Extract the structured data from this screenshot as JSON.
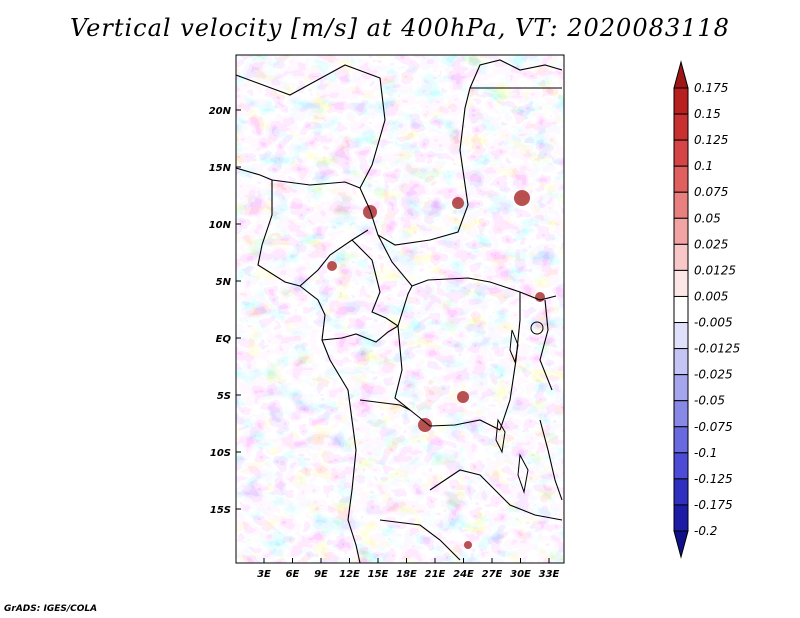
{
  "title": "Vertical velocity [m/s] at 400hPa, VT: 2020083118",
  "credit": "GrADS: IGES/COLA",
  "map": {
    "lat_ticks": [
      "20N",
      "15N",
      "10N",
      "5N",
      "EQ",
      "5S",
      "10S",
      "15S"
    ],
    "lon_ticks": [
      "3E",
      "6E",
      "9E",
      "12E",
      "15E",
      "18E",
      "21E",
      "24E",
      "27E",
      "30E",
      "33E"
    ]
  },
  "colorbar": {
    "labels": [
      "0.175",
      "0.15",
      "0.125",
      "0.1",
      "0.075",
      "0.05",
      "0.025",
      "0.0125",
      "0.005",
      "-0.005",
      "-0.0125",
      "-0.025",
      "-0.05",
      "-0.075",
      "-0.1",
      "-0.125",
      "-0.175",
      "-0.2"
    ],
    "colors": [
      "#9e1616",
      "#b82020",
      "#c93030",
      "#d64545",
      "#e06060",
      "#e98080",
      "#f2a4a4",
      "#f8c8c8",
      "#fde6e6",
      "#ffffff",
      "#e0e0fb",
      "#c4c4f5",
      "#a6a6ee",
      "#8888e6",
      "#6a6ae0",
      "#4c4cd6",
      "#3030c0",
      "#1c1ca6",
      "#10108a"
    ]
  }
}
